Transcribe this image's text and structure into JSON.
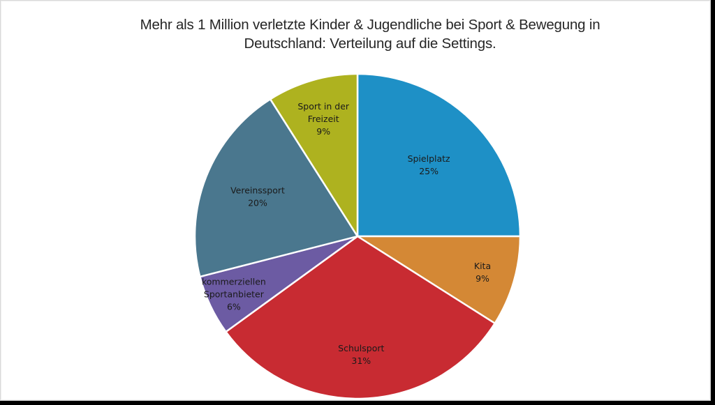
{
  "chart": {
    "title_line1": "Mehr als 1 Million verletzte Kinder & Jugendliche bei Sport & Bewegung in",
    "title_line2": "Deutschland: Verteilung auf die Settings."
  },
  "slices": [
    {
      "label_lines": [
        "Spielplatz"
      ],
      "percent": "25%",
      "color": "#1E90C6"
    },
    {
      "label_lines": [
        "Kita"
      ],
      "percent": "9%",
      "color": "#D48835"
    },
    {
      "label_lines": [
        "Schulsport"
      ],
      "percent": "31%",
      "color": "#C82B32"
    },
    {
      "label_lines": [
        "kommerziellen",
        "Sportanbieter"
      ],
      "percent": "6%",
      "color": "#6C5BA3"
    },
    {
      "label_lines": [
        "Vereinssport"
      ],
      "percent": "20%",
      "color": "#4A778E"
    },
    {
      "label_lines": [
        "Sport in der",
        "Freizeit"
      ],
      "percent": "9%",
      "color": "#AEB21F"
    }
  ],
  "chart_data": {
    "type": "pie",
    "title": "Mehr als 1 Million verletzte Kinder & Jugendliche bei Sport & Bewegung in Deutschland: Verteilung auf die Settings.",
    "categories": [
      "Spielplatz",
      "Kita",
      "Schulsport",
      "kommerziellen Sportanbieter",
      "Vereinssport",
      "Sport in der Freizeit"
    ],
    "values": [
      25,
      9,
      31,
      6,
      20,
      9
    ],
    "unit": "%",
    "start_angle": "12 o'clock, clockwise",
    "colors": [
      "#1E90C6",
      "#D48835",
      "#C82B32",
      "#6C5BA3",
      "#4A778E",
      "#AEB21F"
    ],
    "legend": "none (data labels inside slices)"
  }
}
